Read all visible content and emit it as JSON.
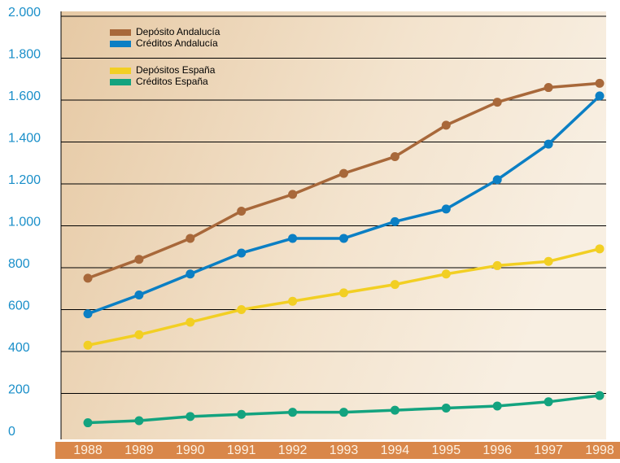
{
  "chart_data": {
    "type": "line",
    "categories": [
      "1988",
      "1989",
      "1990",
      "1991",
      "1992",
      "1993",
      "1994",
      "1995",
      "1996",
      "1997",
      "1998"
    ],
    "series": [
      {
        "name": "Depósito Andalucía",
        "color": "#a8683a",
        "values": [
          750,
          840,
          940,
          1070,
          1150,
          1250,
          1330,
          1480,
          1590,
          1660,
          1680
        ]
      },
      {
        "name": "Créditos Andalucía",
        "color": "#0b7fc4",
        "values": [
          580,
          670,
          770,
          870,
          940,
          940,
          1020,
          1080,
          1220,
          1390,
          1620
        ]
      },
      {
        "name": "Depósitos España",
        "color": "#f2cf23",
        "values": [
          430,
          480,
          540,
          600,
          640,
          680,
          720,
          770,
          810,
          830,
          890
        ]
      },
      {
        "name": "Créditos España",
        "color": "#13a37f",
        "values": [
          60,
          70,
          90,
          100,
          110,
          110,
          120,
          130,
          140,
          160,
          190
        ]
      }
    ],
    "ylim": [
      0,
      2000
    ],
    "yticks": [
      0,
      200,
      400,
      600,
      800,
      {
        "value": 1000,
        "label": "1.000"
      },
      {
        "value": 1200,
        "label": "1.200"
      },
      {
        "value": 1400,
        "label": "1.400"
      },
      {
        "value": 1600,
        "label": "1.600"
      },
      {
        "value": 1800,
        "label": "1.800"
      },
      {
        "value": 2000,
        "label": "2.000"
      }
    ],
    "grid": true
  }
}
